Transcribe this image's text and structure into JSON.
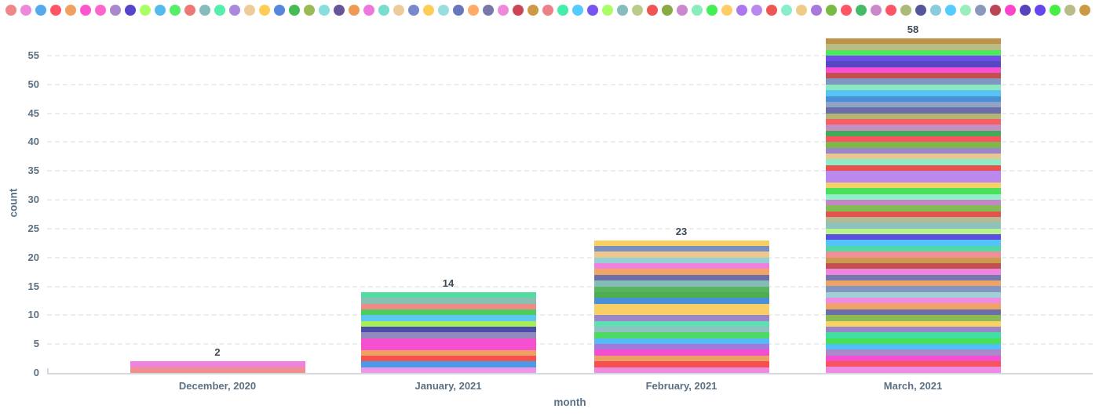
{
  "legend": {
    "position": "top",
    "dot_colors": [
      "#ee8888",
      "#ee88dd",
      "#55aaee",
      "#ff5566",
      "#f0a060",
      "#ff55cc",
      "#ff66cc",
      "#aa88cc",
      "#5544cc",
      "#aaff66",
      "#55bbee",
      "#55ee66",
      "#ee7777",
      "#88bbbb",
      "#55eeaa",
      "#aa88dd",
      "#eecc99",
      "#ffcc55",
      "#5588dd",
      "#44bb55",
      "#99bb55",
      "#88dddd",
      "#665599",
      "#ee9955",
      "#ee77dd",
      "#77ddcc",
      "#eecc99",
      "#7788cc",
      "#ffcc55",
      "#99dddd",
      "#6677bb",
      "#ffaa66",
      "#7777aa",
      "#ee88dd",
      "#cc4455",
      "#cc9944",
      "#ee8088",
      "#44eeaa",
      "#55ccff",
      "#7755ee",
      "#aaff66",
      "#88bbbb",
      "#bbcc88",
      "#ee5555",
      "#88aa44",
      "#cc88cc",
      "#88eebb",
      "#44ee55",
      "#ffcc66",
      "#aa77ee",
      "#bb88ee",
      "#ee5555",
      "#88eecc",
      "#eecc88",
      "#aa77dd",
      "#77bb44",
      "#ff5566",
      "#44bb66",
      "#cc88cc",
      "#ff5566",
      "#aabb77",
      "#555599",
      "#88ccdd",
      "#55ccff",
      "#99eebb",
      "#8899bb",
      "#bb4455",
      "#ff44cc",
      "#5544bb",
      "#6644ee",
      "#44ee44",
      "#bbbb88",
      "#cc9944"
    ]
  },
  "chart_data": {
    "type": "bar",
    "stacked": true,
    "xlabel": "month",
    "ylabel": "count",
    "categories": [
      "December, 2020",
      "January, 2021",
      "February, 2021",
      "March, 2021"
    ],
    "values": [
      2,
      14,
      23,
      58
    ],
    "y_ticks": [
      0,
      5,
      10,
      15,
      20,
      25,
      30,
      35,
      40,
      45,
      50,
      55
    ],
    "ylim": [
      0,
      58
    ],
    "grid": "horizontal-dashed",
    "legend_position": "top",
    "unit_per_segment": 1,
    "bars": [
      {
        "category": "December, 2020",
        "total": 2,
        "segments_top_to_bottom": [
          "#ee82dd",
          "#f0908e"
        ]
      },
      {
        "category": "January, 2021",
        "total": 14,
        "segments_top_to_bottom": [
          "#52dca2",
          "#8abfb4",
          "#f08a84",
          "#4ecc5e",
          "#5cc8f2",
          "#a8ee58",
          "#4c4caa",
          "#9289bd",
          "#f650d0",
          "#f650d0",
          "#f0a062",
          "#f5524f",
          "#4a9ae8",
          "#ee97e8"
        ]
      },
      {
        "category": "February, 2021",
        "total": 23,
        "segments_top_to_bottom": [
          "#f7cf60",
          "#7a8fc0",
          "#ecc88f",
          "#93cfd4",
          "#f080e0",
          "#f0a468",
          "#6b6fa8",
          "#85bcba",
          "#58b45e",
          "#4cae50",
          "#4a90d9",
          "#f7cf65",
          "#f7cf65",
          "#9b86c9",
          "#62dfb2",
          "#8fc3c3",
          "#4cd964",
          "#55bbf5",
          "#a478dd",
          "#f24ecf",
          "#eda066",
          "#f5504e",
          "#ef8ae0"
        ]
      },
      {
        "category": "March, 2021",
        "total": 58,
        "segments_top_to_bottom": [
          "#be9347",
          "#b9bd85",
          "#4fe75e",
          "#6f4de8",
          "#5747c2",
          "#f94fd4",
          "#c4504e",
          "#8296c2",
          "#8ce8c0",
          "#58c4f4",
          "#4a90d9",
          "#92a4c4",
          "#6b6fa8",
          "#b4b474",
          "#f85f62",
          "#c490c4",
          "#44aa55",
          "#f8555e",
          "#7cb84c",
          "#9a86c8",
          "#e8c88e",
          "#90ecc8",
          "#e8514e",
          "#bb88ee",
          "#bb88ee",
          "#f6d068",
          "#4ae05a",
          "#90eec8",
          "#c388c3",
          "#84bb54",
          "#e5534f",
          "#b2bb96",
          "#8ec3bb",
          "#b8f48e",
          "#5a4fe0",
          "#54c4f8",
          "#52d8a8",
          "#ef8f96",
          "#cc9a4e",
          "#c2504e",
          "#ee86e0",
          "#7479ae",
          "#eea366",
          "#8296c4",
          "#9fd0d4",
          "#f08ae2",
          "#eea366",
          "#6b6fa8",
          "#8cba54",
          "#f8d264",
          "#9a86c6",
          "#42dda0",
          "#48e055",
          "#52c0f8",
          "#a988cc",
          "#f44fd0",
          "#f8545e",
          "#ef8ae4"
        ]
      }
    ]
  }
}
